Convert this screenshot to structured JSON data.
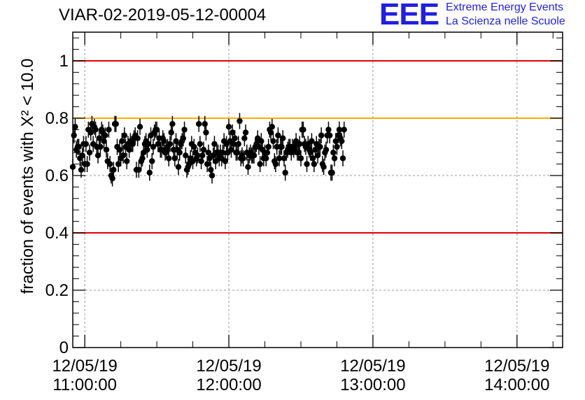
{
  "title": "VIAR-02-2019-05-12-00004",
  "logo": {
    "mark": "EEE",
    "line1": "Extreme Energy Events",
    "line2": "La Scienza nelle Scuole"
  },
  "colors": {
    "points": "#000000",
    "limit": "#e00000",
    "warning": "#ffb000",
    "grid": "#9a9a9a",
    "logo": "#1f1fe6"
  },
  "chart_data": {
    "type": "scatter",
    "title": "VIAR-02-2019-05-12-00004",
    "ylabel": "fraction of events with X² < 10.0",
    "xlabel": "",
    "xlim": [
      "12/05/19 10:55",
      "12/05/19 14:19"
    ],
    "ylim": [
      0,
      1.1
    ],
    "grid": true,
    "yticks": [
      "0",
      "0.2",
      "0.4",
      "0.6",
      "0.8",
      "1"
    ],
    "xticks": [
      {
        "date": "12/05/19",
        "time": "11:00:00"
      },
      {
        "date": "12/05/19",
        "time": "12:00:00"
      },
      {
        "date": "12/05/19",
        "time": "13:00:00"
      },
      {
        "date": "12/05/19",
        "time": "14:00:00"
      }
    ],
    "hlines": [
      {
        "y": 1.0,
        "color": "#e00000"
      },
      {
        "y": 0.8,
        "color": "#ffb000"
      },
      {
        "y": 0.4,
        "color": "#e00000"
      }
    ],
    "error": 0.028,
    "series": [
      {
        "x_start": "12/05/19 10:55:00",
        "x_step_seconds": 30,
        "y": [
          0.63,
          0.74,
          0.77,
          0.69,
          0.7,
          0.7,
          0.66,
          0.62,
          0.67,
          0.71,
          0.64,
          0.71,
          0.64,
          0.76,
          0.68,
          0.75,
          0.78,
          0.71,
          0.77,
          0.76,
          0.7,
          0.67,
          0.73,
          0.7,
          0.76,
          0.75,
          0.72,
          0.74,
          0.69,
          0.65,
          0.76,
          0.64,
          0.6,
          0.59,
          0.62,
          0.78,
          0.78,
          0.7,
          0.64,
          0.69,
          0.66,
          0.72,
          0.67,
          0.74,
          0.7,
          0.65,
          0.71,
          0.69,
          0.72,
          0.71,
          0.71,
          0.73,
          0.74,
          0.62,
          0.73,
          0.62,
          0.77,
          0.65,
          0.66,
          0.68,
          0.71,
          0.72,
          0.69,
          0.71,
          0.61,
          0.74,
          0.65,
          0.7,
          0.75,
          0.76,
          0.76,
          0.71,
          0.73,
          0.69,
          0.69,
          0.73,
          0.72,
          0.68,
          0.69,
          0.7,
          0.66,
          0.71,
          0.75,
          0.78,
          0.69,
          0.66,
          0.72,
          0.69,
          0.63,
          0.68,
          0.71,
          0.72,
          0.73,
          0.76,
          0.67,
          0.62,
          0.63,
          0.64,
          0.66,
          0.71,
          0.65,
          0.7,
          0.68,
          0.66,
          0.67,
          0.78,
          0.71,
          0.65,
          0.67,
          0.69,
          0.78,
          0.75,
          0.64,
          0.68,
          0.66,
          0.62,
          0.6,
          0.67,
          0.71,
          0.65,
          0.68,
          0.68,
          0.66,
          0.68,
          0.66,
          0.68,
          0.72,
          0.65,
          0.71,
          0.68,
          0.77,
          0.72,
          0.69,
          0.75,
          0.71,
          0.73,
          0.68,
          0.68,
          0.71,
          0.79,
          0.66,
          0.67,
          0.66,
          0.73,
          0.75,
          0.68,
          0.63,
          0.67,
          0.68,
          0.67,
          0.67,
          0.67,
          0.7,
          0.71,
          0.73,
          0.7,
          0.64,
          0.72,
          0.69,
          0.66,
          0.68,
          0.66,
          0.68,
          0.7,
          0.76,
          0.75,
          0.77,
          0.72,
          0.65,
          0.64,
          0.7,
          0.74,
          0.66,
          0.7,
          0.7,
          0.73,
          0.66,
          0.61,
          0.68,
          0.69,
          0.7,
          0.7,
          0.68,
          0.7,
          0.69,
          0.7,
          0.72,
          0.68,
          0.68,
          0.71,
          0.66,
          0.76,
          0.76,
          0.71,
          0.7,
          0.64,
          0.71,
          0.69,
          0.68,
          0.72,
          0.66,
          0.64,
          0.69,
          0.71,
          0.67,
          0.7,
          0.7,
          0.74,
          0.64,
          0.63,
          0.68,
          0.69,
          0.74,
          0.76,
          0.74,
          0.61,
          0.61,
          0.68,
          0.66,
          0.72,
          0.7,
          0.74,
          0.76,
          0.73,
          0.72,
          0.66,
          0.76
        ]
      }
    ]
  }
}
